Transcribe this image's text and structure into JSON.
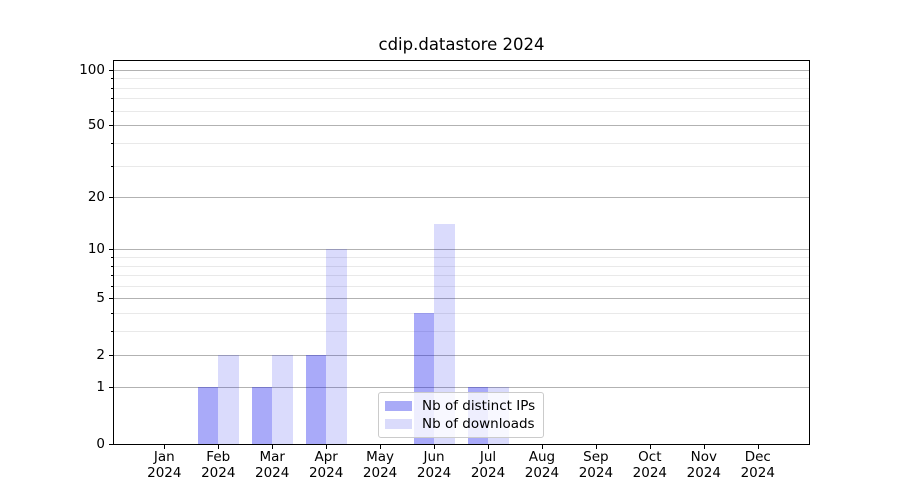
{
  "title": "cdip.datastore 2024",
  "chart_data": {
    "type": "bar",
    "title": "cdip.datastore 2024",
    "categories": [
      "Jan 2024",
      "Feb 2024",
      "Mar 2024",
      "Apr 2024",
      "May 2024",
      "Jun 2024",
      "Jul 2024",
      "Aug 2024",
      "Sep 2024",
      "Oct 2024",
      "Nov 2024",
      "Dec 2024"
    ],
    "x_tick_months": [
      "Jan",
      "Feb",
      "Mar",
      "Apr",
      "May",
      "Jun",
      "Jul",
      "Aug",
      "Sep",
      "Oct",
      "Nov",
      "Dec"
    ],
    "x_tick_year": "2024",
    "series": [
      {
        "name": "Nb of distinct IPs",
        "values": [
          0,
          1,
          1,
          2,
          0,
          4,
          1,
          0,
          0,
          0,
          0,
          0
        ],
        "fill": "rgba(10,12,237,0.35)",
        "legend_color": "#a9abf7"
      },
      {
        "name": "Nb of downloads",
        "values": [
          0,
          2,
          2,
          10,
          0,
          14,
          1,
          0,
          0,
          0,
          0,
          0
        ],
        "fill": "rgba(10,12,237,0.15)",
        "legend_color": "#dadbfb"
      }
    ],
    "xlabel": "",
    "ylabel": "",
    "yscale": "log1p",
    "ylim": [
      0,
      100
    ],
    "y_major_ticks": [
      0,
      1,
      2,
      5,
      10,
      20,
      50,
      100
    ],
    "y_minor_ticks": [
      3,
      4,
      6,
      7,
      8,
      9,
      30,
      40,
      60,
      70,
      80,
      90
    ],
    "grid": true,
    "legend_position": "lower center"
  },
  "colors": {
    "background": "#ffffff",
    "axis": "#000000",
    "text": "#000000",
    "major_gridline": "#b2b2b2",
    "minor_gridline": "#e9e9e9"
  }
}
